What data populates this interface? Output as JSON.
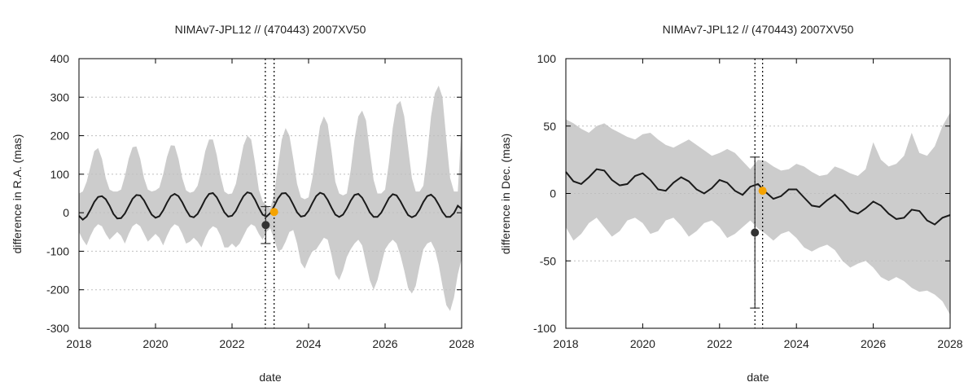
{
  "colors": {
    "band": "#cccccc",
    "line": "#1a1a1a",
    "obs_dark": "#333333",
    "obs_orange": "#f5a300",
    "grid": "#bfbfbf",
    "axis": "#000000"
  },
  "chart_data": [
    {
      "id": "ra",
      "type": "line",
      "title": "NIMAv7-JPL12 // (470443) 2007XV50",
      "xlabel": "date",
      "ylabel": "difference in R.A. (mas)",
      "xlim": [
        2018,
        2028
      ],
      "ylim": [
        -300,
        400
      ],
      "xticks": [
        2018,
        2020,
        2022,
        2024,
        2026,
        2028
      ],
      "yticks": [
        -300,
        -200,
        -100,
        0,
        100,
        200,
        300,
        400
      ],
      "grid": "y-dashed",
      "series": [
        {
          "x": [
            2018.0,
            2018.1,
            2018.2,
            2018.3,
            2018.4,
            2018.5,
            2018.6,
            2018.7,
            2018.8,
            2018.9,
            2019.0,
            2019.1,
            2019.2,
            2019.3,
            2019.4,
            2019.5,
            2019.6,
            2019.7,
            2019.8,
            2019.9,
            2020.0,
            2020.1,
            2020.2,
            2020.3,
            2020.4,
            2020.5,
            2020.6,
            2020.7,
            2020.8,
            2020.9,
            2021.0,
            2021.1,
            2021.2,
            2021.3,
            2021.4,
            2021.5,
            2021.6,
            2021.7,
            2021.8,
            2021.9,
            2022.0,
            2022.1,
            2022.2,
            2022.3,
            2022.4,
            2022.5,
            2022.6,
            2022.7,
            2022.8,
            2022.9,
            2023.0,
            2023.1,
            2023.2,
            2023.3,
            2023.4,
            2023.5,
            2023.6,
            2023.7,
            2023.8,
            2023.9,
            2024.0,
            2024.1,
            2024.2,
            2024.3,
            2024.4,
            2024.5,
            2024.6,
            2024.7,
            2024.8,
            2024.9,
            2025.0,
            2025.1,
            2025.2,
            2025.3,
            2025.4,
            2025.5,
            2025.6,
            2025.7,
            2025.8,
            2025.9,
            2026.0,
            2026.1,
            2026.2,
            2026.3,
            2026.4,
            2026.5,
            2026.6,
            2026.7,
            2026.8,
            2026.9,
            2027.0,
            2027.1,
            2027.2,
            2027.3,
            2027.4,
            2027.5,
            2027.6,
            2027.7,
            2027.8,
            2027.9,
            2028.0
          ],
          "y": [
            -8,
            -18,
            -10,
            8,
            28,
            41,
            43,
            35,
            18,
            -3,
            -15,
            -14,
            -2,
            17,
            36,
            46,
            45,
            32,
            13,
            -5,
            -13,
            -9,
            6,
            26,
            43,
            49,
            43,
            27,
            7,
            -9,
            -12,
            -3,
            15,
            35,
            49,
            51,
            40,
            21,
            1,
            -10,
            -8,
            5,
            25,
            43,
            53,
            50,
            34,
            13,
            -5,
            -10,
            -1,
            17,
            37,
            50,
            51,
            40,
            21,
            1,
            -10,
            -8,
            5,
            25,
            43,
            52,
            48,
            33,
            13,
            -5,
            -11,
            -5,
            11,
            31,
            46,
            49,
            39,
            21,
            1,
            -11,
            -11,
            0,
            19,
            38,
            48,
            45,
            30,
            11,
            -6,
            -12,
            -7,
            8,
            28,
            43,
            47,
            38,
            21,
            2,
            -11,
            -11,
            -1,
            18,
            10
          ],
          "band_upper": [
            50,
            55,
            80,
            120,
            160,
            168,
            140,
            90,
            60,
            55,
            55,
            60,
            95,
            140,
            170,
            172,
            140,
            90,
            60,
            55,
            58,
            65,
            100,
            145,
            175,
            174,
            140,
            90,
            58,
            52,
            55,
            70,
            110,
            160,
            190,
            190,
            150,
            95,
            55,
            48,
            50,
            75,
            125,
            175,
            200,
            190,
            130,
            60,
            30,
            20,
            10,
            50,
            120,
            190,
            220,
            200,
            140,
            75,
            40,
            35,
            40,
            90,
            160,
            225,
            250,
            230,
            160,
            80,
            50,
            45,
            50,
            110,
            190,
            250,
            265,
            240,
            160,
            85,
            50,
            50,
            60,
            130,
            220,
            280,
            290,
            250,
            170,
            90,
            55,
            55,
            70,
            150,
            250,
            310,
            330,
            300,
            190,
            90,
            55,
            55,
            230
          ],
          "band_lower": [
            -50,
            -70,
            -85,
            -60,
            -40,
            -30,
            -35,
            -55,
            -70,
            -60,
            -50,
            -60,
            -80,
            -55,
            -35,
            -28,
            -35,
            -55,
            -75,
            -65,
            -55,
            -65,
            -85,
            -60,
            -40,
            -30,
            -35,
            -55,
            -80,
            -75,
            -65,
            -75,
            -90,
            -65,
            -45,
            -35,
            -40,
            -60,
            -90,
            -90,
            -80,
            -90,
            -80,
            -60,
            -40,
            -30,
            -35,
            -55,
            -70,
            -50,
            -40,
            -70,
            -100,
            -95,
            -75,
            -50,
            -45,
            -80,
            -130,
            -145,
            -120,
            -100,
            -95,
            -80,
            -65,
            -70,
            -110,
            -160,
            -175,
            -150,
            -115,
            -95,
            -80,
            -70,
            -85,
            -130,
            -175,
            -200,
            -175,
            -135,
            -95,
            -80,
            -70,
            -80,
            -110,
            -150,
            -195,
            -210,
            -190,
            -140,
            -95,
            -80,
            -75,
            -95,
            -135,
            -190,
            -240,
            -255,
            -220,
            -160,
            -120
          ]
        }
      ],
      "observations": [
        {
          "x": 2022.88,
          "y": -32,
          "err": 48,
          "color": "obs_dark"
        },
        {
          "x": 2023.1,
          "y": 2,
          "err": 0,
          "color": "obs_orange"
        }
      ],
      "vlines": [
        2022.87,
        2023.1
      ]
    },
    {
      "id": "dec",
      "type": "line",
      "title": "NIMAv7-JPL12 // (470443) 2007XV50",
      "xlabel": "date",
      "ylabel": "difference in Dec. (mas)",
      "xlim": [
        2018,
        2028
      ],
      "ylim": [
        -100,
        100
      ],
      "xticks": [
        2018,
        2020,
        2022,
        2024,
        2026,
        2028
      ],
      "yticks": [
        -100,
        -50,
        0,
        50,
        100
      ],
      "grid": "y-dashed",
      "series": [
        {
          "x": [
            2018.0,
            2018.2,
            2018.4,
            2018.6,
            2018.8,
            2019.0,
            2019.2,
            2019.4,
            2019.6,
            2019.8,
            2020.0,
            2020.2,
            2020.4,
            2020.6,
            2020.8,
            2021.0,
            2021.2,
            2021.4,
            2021.6,
            2021.8,
            2022.0,
            2022.2,
            2022.4,
            2022.6,
            2022.8,
            2023.0,
            2023.2,
            2023.4,
            2023.6,
            2023.8,
            2024.0,
            2024.2,
            2024.4,
            2024.6,
            2024.8,
            2025.0,
            2025.2,
            2025.4,
            2025.6,
            2025.8,
            2026.0,
            2026.2,
            2026.4,
            2026.6,
            2026.8,
            2027.0,
            2027.2,
            2027.4,
            2027.6,
            2027.8,
            2028.0
          ],
          "y": [
            16,
            9,
            7,
            12,
            18,
            17,
            10,
            6,
            7,
            13,
            15,
            10,
            3,
            2,
            8,
            12,
            9,
            3,
            0,
            4,
            10,
            8,
            2,
            -1,
            5,
            7,
            1,
            -4,
            -2,
            3,
            3,
            -3,
            -9,
            -10,
            -5,
            -1,
            -6,
            -13,
            -15,
            -11,
            -6,
            -9,
            -15,
            -19,
            -18,
            -12,
            -13,
            -20,
            -23,
            -18,
            -16
          ],
          "band_upper": [
            55,
            52,
            48,
            45,
            50,
            52,
            48,
            45,
            42,
            40,
            44,
            45,
            40,
            36,
            34,
            37,
            40,
            36,
            32,
            28,
            30,
            33,
            30,
            24,
            18,
            25,
            24,
            20,
            17,
            18,
            22,
            20,
            16,
            13,
            14,
            20,
            18,
            15,
            13,
            18,
            38,
            25,
            20,
            22,
            28,
            45,
            30,
            28,
            35,
            50,
            60
          ],
          "band_lower": [
            -25,
            -35,
            -30,
            -22,
            -18,
            -25,
            -32,
            -28,
            -20,
            -18,
            -22,
            -30,
            -28,
            -20,
            -18,
            -24,
            -32,
            -28,
            -22,
            -20,
            -25,
            -33,
            -30,
            -25,
            -20,
            -26,
            -30,
            -35,
            -30,
            -28,
            -33,
            -40,
            -43,
            -40,
            -38,
            -42,
            -50,
            -55,
            -52,
            -50,
            -55,
            -62,
            -65,
            -62,
            -65,
            -70,
            -73,
            -72,
            -75,
            -80,
            -90
          ]
        }
      ],
      "observations": [
        {
          "x": 2022.92,
          "y": -29,
          "err": 56,
          "color": "obs_dark"
        },
        {
          "x": 2023.12,
          "y": 2,
          "err": 0,
          "color": "obs_orange"
        }
      ],
      "vlines": [
        2022.92,
        2023.12
      ]
    }
  ]
}
